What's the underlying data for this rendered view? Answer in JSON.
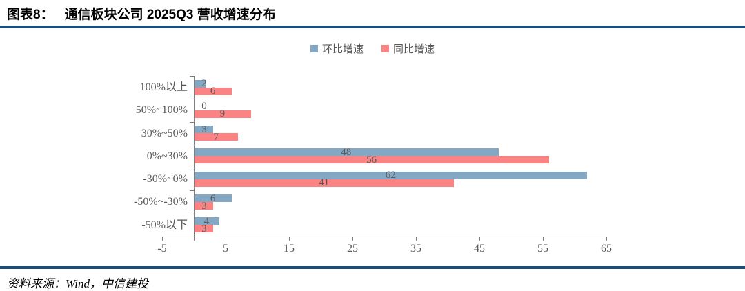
{
  "header": {
    "figure_label": "图表8：",
    "title": "通信板块公司 2025Q3 营收增速分布"
  },
  "footer": {
    "source": "资料来源：Wind，中信建投"
  },
  "colors": {
    "rule": "#1B4E79",
    "axis": "#7F7F7F",
    "label_text": "#595959",
    "series_blue": "#84A7C3",
    "series_red": "#FC8383"
  },
  "chart_data": {
    "type": "bar",
    "orientation": "horizontal",
    "title": "通信板块公司 2025Q3 营收增速分布",
    "categories": [
      "100%以上",
      "50%~100%",
      "30%~50%",
      "0%~30%",
      "-30%~0%",
      "-50%~-30%",
      "-50%以下"
    ],
    "series": [
      {
        "name": "环比增速",
        "color": "#84A7C3",
        "values": [
          2,
          0,
          3,
          48,
          62,
          6,
          4
        ]
      },
      {
        "name": "同比增速",
        "color": "#FC8383",
        "values": [
          6,
          9,
          7,
          56,
          41,
          3,
          3
        ]
      }
    ],
    "xlim": [
      -5,
      65
    ],
    "xticks": [
      -5,
      5,
      15,
      25,
      35,
      45,
      55,
      65
    ],
    "legend_position": "top",
    "grid": false,
    "data_labels": true
  }
}
